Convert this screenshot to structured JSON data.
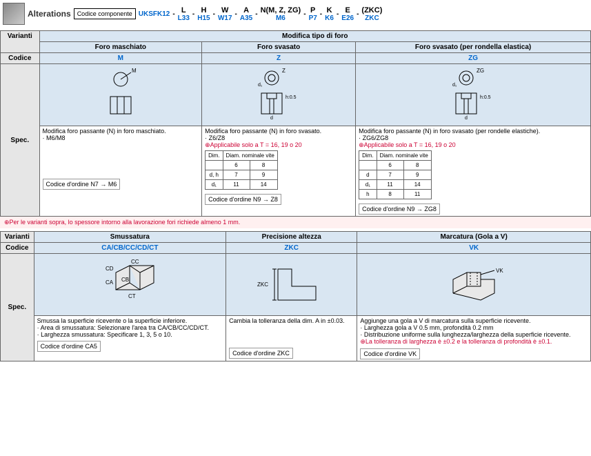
{
  "topbar": {
    "alterations_label": "Alterations",
    "code_component_label": "Codice componente",
    "params": [
      {
        "top": "",
        "bottom": "UKSFK12"
      },
      {
        "top": "L",
        "bottom": "L33"
      },
      {
        "top": "H",
        "bottom": "H15"
      },
      {
        "top": "W",
        "bottom": "W17"
      },
      {
        "top": "A",
        "bottom": "A35"
      },
      {
        "top": "N(M, Z, ZG)",
        "bottom": "M6"
      },
      {
        "top": "P",
        "bottom": "P7"
      },
      {
        "top": "K",
        "bottom": "K6"
      },
      {
        "top": "E",
        "bottom": "E26"
      },
      {
        "top": "(ZKC)",
        "bottom": "ZKC"
      }
    ]
  },
  "section1": {
    "varianti": "Varianti",
    "title": "Modifica tipo di foro",
    "codice_label": "Codice",
    "spec_label": "Spec.",
    "cols": [
      {
        "header": "Foro maschiato",
        "code": "M",
        "diagram_label": "M",
        "spec_text": "Modifica foro passante (N) in foro maschiato.",
        "spec_detail": "· M6/M8",
        "order_label": "Codice d'ordine",
        "order_val": "N7 → M6"
      },
      {
        "header": "Foro svasato",
        "code": "Z",
        "diagram_label": "Z",
        "spec_text": "Modifica foro passante (N) in foro svasato.",
        "spec_detail": "· Z6/Z8",
        "warn": "⊕Applicabile solo a T = 16, 19 o 20",
        "mini_hdr_dim": "Dim.",
        "mini_hdr_nom": "Diam. nominale vite",
        "mini_rows": [
          [
            "",
            "6",
            "8"
          ],
          [
            "d, h",
            "7",
            "9"
          ],
          [
            "d₁",
            "11",
            "14"
          ]
        ],
        "order_label": "Codice d'ordine",
        "order_val": "N9 → Z8"
      },
      {
        "header": "Foro svasato (per rondella elastica)",
        "code": "ZG",
        "diagram_label": "ZG",
        "spec_text": "Modifica foro passante (N) in foro svasato (per rondelle elastiche).",
        "spec_detail": "· ZG6/ZG8",
        "warn": "⊕Applicabile solo a T = 16, 19 o 20",
        "mini_hdr_dim": "Dim.",
        "mini_hdr_nom": "Diam. nominale vite",
        "mini_rows": [
          [
            "",
            "6",
            "8"
          ],
          [
            "d",
            "7",
            "9"
          ],
          [
            "d₁",
            "11",
            "14"
          ],
          [
            "h",
            "8",
            "11"
          ]
        ],
        "order_label": "Codice d'ordine",
        "order_val": "N9 → ZG8"
      }
    ]
  },
  "note": "⊕Per le varianti sopra, lo spessore intorno alla lavorazione fori richiede almeno 1 mm.",
  "section2": {
    "varianti": "Varianti",
    "codice_label": "Codice",
    "spec_label": "Spec.",
    "cols": [
      {
        "header": "Smussatura",
        "code": "CA/CB/CC/CD/CT",
        "labels": [
          "CD",
          "CC",
          "CA",
          "CB",
          "CT"
        ],
        "spec_text": "Smussa la superficie ricevente o la superficie inferiore.",
        "spec_lines": [
          "· Area di smussatura: Selezionare l'area tra CA/CB/CC/CD/CT.",
          "· Larghezza smussatura: Specificare 1, 3, 5 o 10."
        ],
        "order_label": "Codice d'ordine",
        "order_val": "CA5"
      },
      {
        "header": "Precisione altezza",
        "code": "ZKC",
        "label": "ZKC",
        "spec_text": "Cambia la tolleranza della dim. A in ±0.03.",
        "order_label": "Codice d'ordine",
        "order_val": "ZKC"
      },
      {
        "header": "Marcatura (Gola a V)",
        "code": "VK",
        "label": "VK",
        "spec_text": "Aggiunge una gola a V di marcatura sulla superficie ricevente.",
        "spec_lines": [
          "· Larghezza gola a V 0.5 mm, profondità 0.2 mm",
          "· Distribuzione uniforme sulla lunghezza/larghezza della superficie ricevente."
        ],
        "warn": "⊕La tolleranza di larghezza è ±0.2 e la tolleranza di profondità è ±0.1.",
        "order_label": "Codice d'ordine",
        "order_val": "VK"
      }
    ]
  }
}
